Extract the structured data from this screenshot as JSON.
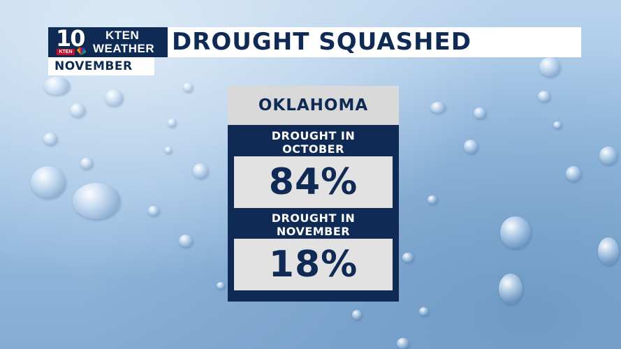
{
  "branding": {
    "station_number": "10",
    "badge": "KTEN",
    "line1": "KTEN",
    "line2": "WEATHER"
  },
  "header": {
    "title": "DROUGHT SQUASHED",
    "month": "NOVEMBER"
  },
  "panel": {
    "state": "OKLAHOMA",
    "stats": [
      {
        "label_line1": "DROUGHT IN",
        "label_line2": "OCTOBER",
        "value": "84%"
      },
      {
        "label_line1": "DROUGHT IN",
        "label_line2": "NOVEMBER",
        "value": "18%"
      }
    ]
  },
  "colors": {
    "navy": "#0f2a55",
    "panel_header": "#d9d9d9",
    "value_box": "#e2e2e2",
    "badge_red": "#c8102e"
  },
  "background": "water-droplets-on-blue"
}
